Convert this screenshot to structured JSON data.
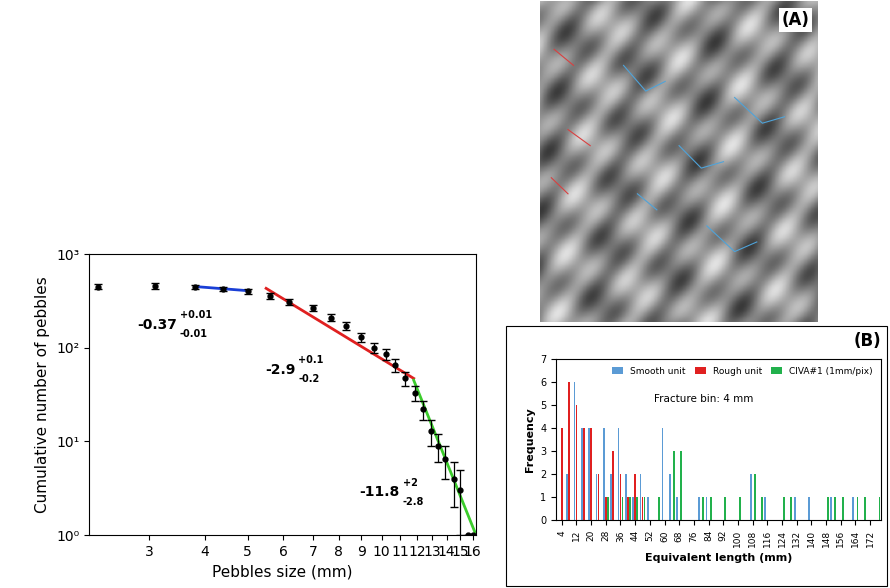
{
  "chart_data": [
    {
      "type": "scatter",
      "x_label": "Pebbles size (mm)",
      "y_label": "Cumulative number of pebbles",
      "log": true,
      "grid": false,
      "marker": "o",
      "color": "#000000",
      "x": [
        2.3,
        3.1,
        3.8,
        4.4,
        5.0,
        5.6,
        6.2,
        7.0,
        7.7,
        8.3,
        9.0,
        9.6,
        10.2,
        10.7,
        11.3,
        11.9,
        12.4,
        12.9,
        13.4,
        13.9,
        14.5,
        15.0,
        15.6,
        16.0
      ],
      "values": [
        450,
        455,
        445,
        425,
        400,
        360,
        310,
        265,
        210,
        170,
        130,
        100,
        85,
        65,
        47,
        33,
        22,
        13,
        9,
        6.5,
        4,
        3,
        1,
        1
      ],
      "errors": [
        30,
        30,
        25,
        25,
        25,
        25,
        22,
        20,
        18,
        16,
        14,
        12,
        11,
        10,
        8,
        6,
        5,
        4,
        3,
        2.5,
        2,
        2,
        0,
        0
      ],
      "fits": [
        {
          "x": [
            3.8,
            5.0
          ],
          "y": [
            450,
            406
          ],
          "color": "#1a3fd6",
          "slope_label": "-0.37",
          "upper": "+0.01",
          "lower": "-0.01"
        },
        {
          "x": [
            5.5,
            11.8
          ],
          "y": [
            430,
            47
          ],
          "color": "#e02020",
          "slope_label": "-2.9",
          "upper": "+0.1",
          "lower": "-0.2"
        },
        {
          "x": [
            11.8,
            16.2
          ],
          "y": [
            45,
            1.07
          ],
          "color": "#3ccc2c",
          "slope_label": "-11.8",
          "upper": "+2",
          "lower": "-2.8"
        }
      ],
      "xlim": [
        2.2,
        16.3
      ],
      "xticks": [
        3,
        4,
        5,
        6,
        7,
        8,
        9,
        10,
        11,
        12,
        13,
        14,
        15,
        16
      ],
      "ylim": [
        1,
        1000
      ],
      "yticks": [
        {
          "value": 1,
          "label": "10⁰"
        },
        {
          "value": 10,
          "label": "10¹"
        },
        {
          "value": 100,
          "label": "10²"
        },
        {
          "value": 1000,
          "label": "10³"
        }
      ]
    },
    {
      "type": "bar",
      "panel_label": "(B)",
      "annotation": "Fracture bin: 4 mm",
      "x_label": "Equivalent length (mm)",
      "y_label": "Frequency",
      "grid": false,
      "legend": "upper right",
      "series": [
        {
          "name": "Smooth unit",
          "color": "#5b9bd5",
          "x": [
            8,
            12,
            16,
            20,
            24,
            28,
            32,
            36,
            40,
            44,
            48,
            52,
            60,
            64,
            68,
            80,
            84,
            108,
            116,
            132,
            140,
            152,
            164
          ],
          "values": [
            2,
            6,
            4,
            4,
            2,
            4,
            2,
            4,
            2,
            1,
            2,
            1,
            4,
            2,
            1,
            1,
            1,
            2,
            1,
            1,
            1,
            1,
            1
          ]
        },
        {
          "name": "Rough unit",
          "color": "#e02020",
          "x": [
            4,
            8,
            12,
            16,
            20,
            24,
            28,
            32,
            36,
            40,
            44,
            48
          ],
          "values": [
            4,
            6,
            5,
            4,
            4,
            2,
            1,
            3,
            2,
            1,
            2,
            1
          ]
        },
        {
          "name": "CIVA#1 (1mm/pix)",
          "color": "#22b14c",
          "x": [
            28,
            36,
            40,
            44,
            48,
            56,
            64,
            68,
            80,
            84,
            92,
            100,
            108,
            112,
            124,
            128,
            148,
            152,
            156,
            164,
            168,
            176
          ],
          "values": [
            1,
            1,
            1,
            1,
            1,
            1,
            3,
            3,
            1,
            1,
            1,
            1,
            2,
            1,
            1,
            1,
            1,
            1,
            1,
            1,
            1,
            1
          ]
        }
      ],
      "xlim": [
        1,
        178
      ],
      "xticks": [
        4,
        12,
        20,
        28,
        36,
        44,
        52,
        60,
        68,
        76,
        84,
        92,
        100,
        108,
        116,
        124,
        132,
        140,
        148,
        156,
        164,
        172
      ],
      "ylim": [
        0,
        7
      ],
      "yticks": [
        0,
        1,
        2,
        3,
        4,
        5,
        6,
        7
      ]
    }
  ],
  "image": {
    "label": "(A)"
  }
}
